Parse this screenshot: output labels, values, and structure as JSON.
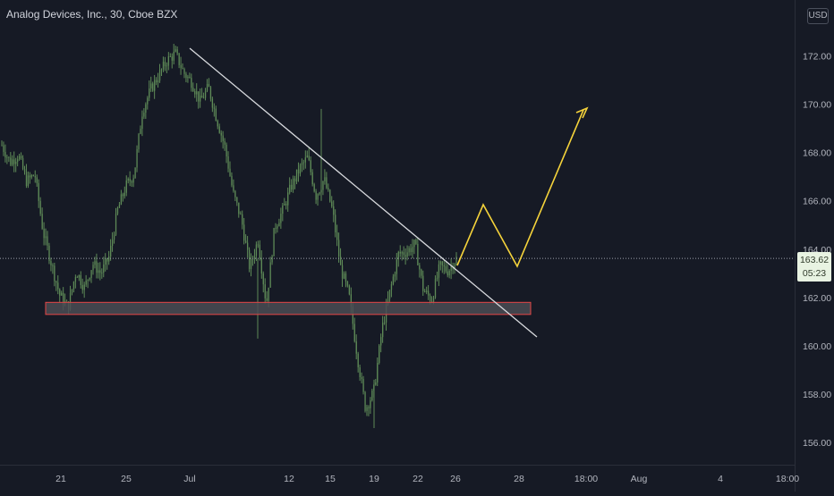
{
  "header": {
    "symbol_title": "Analog Devices, Inc., 30, Cboe BZX",
    "currency": "USD"
  },
  "last_price": {
    "value": 163.62,
    "label": "163.62",
    "countdown": "05:23"
  },
  "colors": {
    "background": "#161a25",
    "candles": "#5e8a57",
    "box_border": "#e54545",
    "box_fill": "#4a4c53",
    "trendline": "#d9dbdf",
    "projection": "#f5d33b",
    "axis_text": "#b2b5be",
    "price_tag": "#e8f3e2"
  },
  "chart_data": {
    "type": "line",
    "title": "Analog Devices, Inc., 30, Cboe BZX",
    "ylim": [
      155.0,
      174.5
    ],
    "y_ticks": [
      156,
      158,
      160,
      162,
      164,
      166,
      168,
      170,
      172
    ],
    "y_tick_labels": [
      "156.00",
      "158.00",
      "160.00",
      "162.00",
      "164.00",
      "166.00",
      "168.00",
      "170.00",
      "172.00"
    ],
    "x_tick_labels": [
      "21",
      "25",
      "Jul",
      "12",
      "15",
      "19",
      "22",
      "26",
      "28",
      "18:00",
      "Aug",
      "4",
      "18:00"
    ],
    "series": [
      {
        "values": [
          168.3,
          167.6,
          167.9,
          166.8,
          167.1,
          164.7,
          163.4,
          162.1,
          161.6,
          163.1,
          162.4,
          163.4,
          163.0,
          163.7,
          165.6,
          166.6,
          167.1,
          169.7,
          170.6,
          171.2,
          171.8,
          172.1,
          171.3,
          170.9,
          170.1,
          170.7,
          169.4,
          168.2,
          166.3,
          165.2,
          163.2,
          164.4,
          161.7,
          164.9,
          165.6,
          166.6,
          167.3,
          167.8,
          166.2,
          166.9,
          165.6,
          163.2,
          162.1,
          159.6,
          157.4,
          158.1,
          160.7,
          162.3,
          163.8,
          163.9,
          164.2,
          162.3,
          161.9,
          163.3,
          163.1,
          163.62
        ]
      }
    ],
    "annotations": {
      "trendline": {
        "from": {
          "date": "Jul 1",
          "price": 172.3
        },
        "to": {
          "date": "Jul 28",
          "price": 160.4
        }
      },
      "support_zone": {
        "price_low": 161.3,
        "price_high": 161.8
      },
      "projection": {
        "points": [
          163.6,
          165.9,
          163.3,
          169.9
        ],
        "end_arrow": true
      }
    },
    "grid": false,
    "legend": "none"
  }
}
